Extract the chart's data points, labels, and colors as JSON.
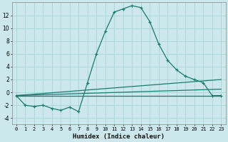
{
  "xlabel": "Humidex (Indice chaleur)",
  "bg_color": "#cce8ec",
  "line_color": "#1a7a6e",
  "marker": "+",
  "xlim": [
    -0.5,
    23.5
  ],
  "ylim": [
    -5,
    14
  ],
  "yticks": [
    -4,
    -2,
    0,
    2,
    4,
    6,
    8,
    10,
    12
  ],
  "xticks": [
    0,
    1,
    2,
    3,
    4,
    5,
    6,
    7,
    8,
    9,
    10,
    11,
    12,
    13,
    14,
    15,
    16,
    17,
    18,
    19,
    20,
    21,
    22,
    23
  ],
  "grid_color": "#a8d4d8",
  "main_line": {
    "x": [
      0,
      1,
      2,
      3,
      4,
      5,
      6,
      7,
      8,
      9,
      10,
      11,
      12,
      13,
      14,
      15,
      16,
      17,
      18,
      19,
      20,
      21,
      22,
      23
    ],
    "y": [
      -0.5,
      -2.0,
      -2.2,
      -2.0,
      -2.5,
      -2.8,
      -2.3,
      -3.0,
      1.5,
      6.0,
      9.5,
      12.5,
      13.0,
      13.5,
      13.2,
      11.0,
      7.5,
      5.0,
      3.5,
      2.5,
      2.0,
      1.5,
      -0.5,
      -0.5
    ]
  },
  "extra_lines": [
    {
      "x": [
        0,
        23
      ],
      "y": [
        -0.5,
        -0.5
      ]
    },
    {
      "x": [
        0,
        23
      ],
      "y": [
        -0.5,
        2.0
      ]
    },
    {
      "x": [
        0,
        23
      ],
      "y": [
        -0.5,
        0.5
      ]
    }
  ]
}
